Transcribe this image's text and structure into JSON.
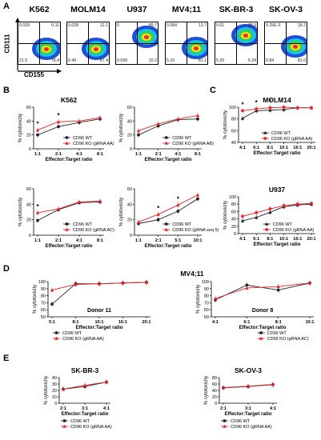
{
  "panels": {
    "A": "A",
    "B": "B",
    "C": "C",
    "D": "D",
    "E": "E"
  },
  "flow": {
    "yaxis": "CD111",
    "xaxis": "CD155",
    "plots": [
      {
        "title": "K562",
        "tl": "0.029",
        "tr": "0.11",
        "bl": "21.5",
        "br": "78.4"
      },
      {
        "title": "MOLM14",
        "tl": "0.028",
        "tr": "12.1",
        "bl": "0.49",
        "br": "87.4"
      },
      {
        "title": "U937",
        "tl": "0",
        "tr": "89.7",
        "bl": "0.099",
        "br": "10.2"
      },
      {
        "title": "MV4;11",
        "tl": "0.084",
        "tr": "13.7",
        "bl": "5.16",
        "br": "81.1"
      },
      {
        "title": "SK-BR-3",
        "tl": "0.61",
        "tr": "88.9",
        "bl": "5.20",
        "br": "5.24"
      },
      {
        "title": "SK-OV-3",
        "tl": "9.25E-3",
        "tr": "18.2",
        "bl": "0.84",
        "br": "81.0"
      }
    ]
  },
  "colors": {
    "wt": "#222222",
    "ko": "#e8202a"
  },
  "common": {
    "ylabel": "% cytotoxicity",
    "xlabel": "Effector:Target ratio",
    "wt": "CD96 WT"
  },
  "chart_data": [
    {
      "id": "B1",
      "type": "line",
      "title": "K562",
      "categories": [
        "1:1",
        "2:1",
        "4:1",
        "8:1"
      ],
      "ylim": [
        0,
        60
      ],
      "yticks": [
        0,
        20,
        40,
        60
      ],
      "stars": [
        0,
        1
      ],
      "legend": "bottom-right",
      "series": [
        {
          "name": "CD96 WT",
          "values": [
            20,
            32,
            38,
            43
          ]
        },
        {
          "name": "CD96 KO (gRNA AA)",
          "values": [
            27,
            39,
            40,
            45
          ]
        }
      ]
    },
    {
      "id": "B2",
      "type": "line",
      "title": "",
      "categories": [
        "1:1",
        "2:1",
        "4:1",
        "8:1"
      ],
      "ylim": [
        0,
        60
      ],
      "yticks": [
        0,
        20,
        40,
        60
      ],
      "stars": [],
      "legend": "bottom-right",
      "series": [
        {
          "name": "CD96 WT",
          "values": [
            20,
            33,
            42,
            43
          ]
        },
        {
          "name": "CD96 KO (gRNA AB)",
          "values": [
            26,
            36,
            43,
            48
          ]
        }
      ]
    },
    {
      "id": "B3",
      "type": "line",
      "title": "",
      "categories": [
        "1:1",
        "2:1",
        "4:1",
        "8:1"
      ],
      "ylim": [
        0,
        60
      ],
      "yticks": [
        0,
        20,
        40,
        60
      ],
      "stars": [
        0
      ],
      "legend": "bottom-right",
      "series": [
        {
          "name": "CD96 WT",
          "values": [
            19,
            33,
            42,
            43
          ]
        },
        {
          "name": "CD96 KO (gRNA AC)",
          "values": [
            29,
            34,
            43,
            44
          ]
        }
      ]
    },
    {
      "id": "B4",
      "type": "line",
      "title": "",
      "categories": [
        "1:1",
        "2:1",
        "5:1",
        "10:1"
      ],
      "ylim": [
        0,
        60
      ],
      "yticks": [
        0,
        20,
        40,
        60
      ],
      "stars": [
        1,
        2
      ],
      "legend": "bottom-right",
      "series": [
        {
          "name": "CD96 WT",
          "values": [
            15,
            20,
            31,
            47
          ]
        },
        {
          "name": "CD96 KO (gRNA seq 5)",
          "values": [
            17,
            27,
            39,
            52
          ]
        }
      ]
    },
    {
      "id": "C1",
      "type": "line",
      "title": "MOLM14",
      "categories": [
        "4:1",
        "6:1",
        "8:1",
        "10:1",
        "16:1",
        "20:1"
      ],
      "ylim": [
        40,
        100
      ],
      "yticks": [
        40,
        60,
        80,
        100
      ],
      "stars": [
        0,
        1,
        2
      ],
      "legend": "bottom-right",
      "series": [
        {
          "name": "CD96 WT",
          "values": [
            81,
            94,
            95,
            96,
            99,
            99
          ]
        },
        {
          "name": "CD96 KO (gRNA AA)",
          "values": [
            94,
            97,
            99,
            100,
            99,
            99
          ]
        }
      ]
    },
    {
      "id": "C2",
      "type": "line",
      "title": "U937",
      "categories": [
        "4:1",
        "6:1",
        "8:1",
        "10:1",
        "16:1",
        "20:1"
      ],
      "ylim": [
        0,
        100
      ],
      "yticks": [
        0,
        20,
        40,
        60,
        80,
        100
      ],
      "stars": [],
      "legend": "bottom-right",
      "series": [
        {
          "name": "CD96 WT",
          "values": [
            35,
            44,
            58,
            73,
            78,
            80
          ]
        },
        {
          "name": "CD96 KO (gRNA AA)",
          "values": [
            47,
            57,
            67,
            76,
            80,
            82
          ]
        }
      ]
    },
    {
      "id": "D1",
      "type": "line",
      "title": "Donor 11",
      "categories": [
        "5:1",
        "8:1",
        "10:1",
        "16:1",
        "20:1"
      ],
      "ylim": [
        50,
        100
      ],
      "yticks": [
        50,
        60,
        70,
        80,
        90,
        100
      ],
      "stars": [],
      "legend": "bottom-left",
      "series": [
        {
          "name": "CD96 WT",
          "values": [
            68,
            97,
            97,
            98,
            99
          ]
        },
        {
          "name": "CD96 KO (gRNA AA)",
          "values": [
            88,
            96,
            97,
            98,
            99
          ]
        }
      ]
    },
    {
      "id": "D2",
      "type": "line",
      "title": "Donor 8",
      "categories": [
        "4:1",
        "6:1",
        "8:1",
        "10:1"
      ],
      "ylim": [
        50,
        100
      ],
      "yticks": [
        50,
        60,
        70,
        80,
        90,
        100
      ],
      "stars": [],
      "legend": "top-right",
      "series": [
        {
          "name": "CD96 WT",
          "values": [
            74,
            95,
            88,
            98
          ]
        },
        {
          "name": "CD96 KO (gRNA AC)",
          "values": [
            76,
            91,
            93,
            98
          ]
        }
      ]
    },
    {
      "id": "E1",
      "type": "line",
      "title": "SK-BR-3",
      "categories": [
        "2:1",
        "3:1",
        "4:1"
      ],
      "ylim": [
        0,
        40
      ],
      "yticks": [
        0,
        10,
        20,
        30,
        40
      ],
      "stars": [],
      "legend": "bottom-right",
      "series": [
        {
          "name": "CD96 WT",
          "values": [
            22,
            26,
            33
          ]
        },
        {
          "name": "CD96 KO (gRNA AA)",
          "values": [
            22,
            28,
            33
          ]
        }
      ]
    },
    {
      "id": "E2",
      "type": "line",
      "title": "SK-OV-3",
      "categories": [
        "2:1",
        "3:1",
        "4:1"
      ],
      "ylim": [
        0,
        80
      ],
      "yticks": [
        0,
        20,
        40,
        60,
        80
      ],
      "stars": [],
      "legend": "bottom-right",
      "series": [
        {
          "name": "CD96 WT",
          "values": [
            48,
            52,
            58
          ]
        },
        {
          "name": "CD96 KO (gRNA AA)",
          "values": [
            49,
            53,
            59
          ]
        }
      ]
    }
  ],
  "mv411_title": "MV4;11"
}
